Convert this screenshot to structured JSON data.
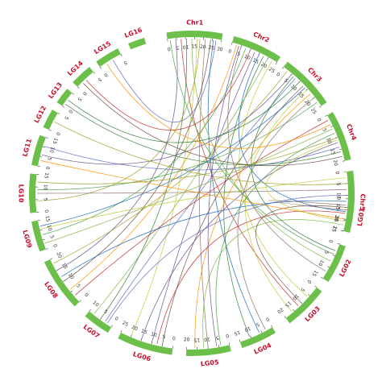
{
  "colors": {
    "segment": "#6cc04a",
    "label": "#c8102e",
    "palette": [
      "#6a4c93",
      "#2e7d32",
      "#c0ca33",
      "#8d6e63",
      "#1565c0",
      "#c62828",
      "#7cb342",
      "#9e9d24",
      "#5c6bc0",
      "#6d4c41",
      "#ff8f00",
      "#43a047"
    ]
  },
  "segments": [
    {
      "id": "Chr1",
      "label": "Chr1",
      "start": 261,
      "end": 281,
      "ticks": [
        "0",
        "5",
        "10",
        "15",
        "20",
        "25",
        "30"
      ]
    },
    {
      "id": "Chr2",
      "label": "Chr2",
      "start": 285,
      "end": 303,
      "ticks": [
        "0",
        "5",
        "10",
        "15",
        "20",
        "25"
      ]
    },
    {
      "id": "Chr3",
      "label": "Chr3",
      "start": 306,
      "end": 326,
      "ticks": [
        "0",
        "5",
        "10",
        "15",
        "20",
        "25"
      ]
    },
    {
      "id": "Chr4",
      "label": "Chr4",
      "start": 330,
      "end": 348,
      "ticks": [
        "0",
        "5",
        "10",
        "15",
        "20"
      ]
    },
    {
      "id": "Chr5",
      "label": "Chr5",
      "start": 352,
      "end": 374,
      "ticks": [
        "0",
        "5",
        "10",
        "15",
        "20",
        "25"
      ]
    },
    {
      "id": "LG01",
      "label": "LG01",
      "start": 2,
      "end": 14,
      "ticks": [
        "0",
        "5",
        "10",
        "15"
      ]
    },
    {
      "id": "LG02",
      "label": "LG02",
      "start": 19,
      "end": 33,
      "ticks": [
        "0",
        "5",
        "10",
        "15"
      ]
    },
    {
      "id": "LG03",
      "label": "LG03",
      "start": 37,
      "end": 53,
      "ticks": [
        "0",
        "5",
        "10",
        "15",
        "20"
      ]
    },
    {
      "id": "LG04",
      "label": "LG04",
      "start": 59,
      "end": 72,
      "ticks": [
        "0",
        "5",
        "10",
        "15"
      ]
    },
    {
      "id": "LG05",
      "label": "LG05",
      "start": 76,
      "end": 92,
      "ticks": [
        "0",
        "5",
        "10",
        "15",
        "20"
      ]
    },
    {
      "id": "LG06",
      "label": "LG06",
      "start": 97,
      "end": 117,
      "ticks": [
        "0",
        "5",
        "10",
        "15",
        "20",
        "25"
      ]
    },
    {
      "id": "LG07",
      "label": "LG07",
      "start": 121,
      "end": 131,
      "ticks": [
        "0",
        "5",
        "10"
      ]
    },
    {
      "id": "LG08",
      "label": "LG08",
      "start": 136,
      "end": 155,
      "ticks": [
        "0",
        "5",
        "10",
        "15",
        "20"
      ]
    },
    {
      "id": "LG09",
      "label": "LG09",
      "start": 159,
      "end": 170,
      "ticks": [
        "0",
        "5",
        "10",
        "15"
      ]
    },
    {
      "id": "LG10",
      "label": "LG10",
      "start": 173,
      "end": 187,
      "ticks": [
        "0",
        "5",
        "10",
        "15"
      ]
    },
    {
      "id": "LG11",
      "label": "LG11",
      "start": 190,
      "end": 201,
      "ticks": [
        "0",
        "5",
        "10",
        "15"
      ]
    },
    {
      "id": "LG12",
      "label": "LG12",
      "start": 204,
      "end": 211,
      "ticks": [
        "0",
        "5"
      ]
    },
    {
      "id": "LG13",
      "label": "LG13",
      "start": 214,
      "end": 220,
      "ticks": [
        "0",
        "5"
      ]
    },
    {
      "id": "LG14",
      "label": "LG14",
      "start": 223,
      "end": 231,
      "ticks": [
        "0",
        "5"
      ]
    },
    {
      "id": "LG15",
      "label": "LG15",
      "start": 234,
      "end": 243,
      "ticks": [
        "0",
        "5"
      ]
    },
    {
      "id": "LG16",
      "label": "LG16",
      "start": 247,
      "end": 253,
      "ticks": []
    }
  ],
  "links": [
    [
      "Chr1",
      0.15,
      "LG08",
      0.75
    ],
    [
      "Chr1",
      0.35,
      "LG07",
      0.5
    ],
    [
      "Chr1",
      0.55,
      "LG06",
      0.8
    ],
    [
      "Chr1",
      0.7,
      "LG05",
      0.5
    ],
    [
      "Chr1",
      0.85,
      "LG04",
      0.4
    ],
    [
      "Chr1",
      0.25,
      "LG03",
      0.6
    ],
    [
      "Chr1",
      0.45,
      "LG02",
      0.5
    ],
    [
      "Chr1",
      0.6,
      "LG10",
      0.3
    ],
    [
      "Chr1",
      0.9,
      "LG15",
      0.6
    ],
    [
      "Chr1",
      0.8,
      "LG08",
      0.5
    ],
    [
      "Chr2",
      0.1,
      "LG08",
      0.3
    ],
    [
      "Chr2",
      0.3,
      "LG09",
      0.5
    ],
    [
      "Chr2",
      0.5,
      "LG06",
      0.4
    ],
    [
      "Chr2",
      0.7,
      "LG04",
      0.7
    ],
    [
      "Chr2",
      0.9,
      "LG03",
      0.3
    ],
    [
      "Chr2",
      0.2,
      "LG02",
      0.8
    ],
    [
      "Chr2",
      0.6,
      "LG01",
      0.4
    ],
    [
      "Chr2",
      0.4,
      "LG14",
      0.5
    ],
    [
      "Chr2",
      0.8,
      "LG07",
      0.8
    ],
    [
      "Chr3",
      0.1,
      "LG08",
      0.9
    ],
    [
      "Chr3",
      0.3,
      "LG07",
      0.3
    ],
    [
      "Chr3",
      0.5,
      "LG06",
      0.2
    ],
    [
      "Chr3",
      0.7,
      "LG05",
      0.8
    ],
    [
      "Chr3",
      0.9,
      "LG10",
      0.6
    ],
    [
      "Chr3",
      0.2,
      "LG11",
      0.4
    ],
    [
      "Chr3",
      0.4,
      "LG13",
      0.5
    ],
    [
      "Chr3",
      0.6,
      "LG03",
      0.8
    ],
    [
      "Chr3",
      0.8,
      "LG04",
      0.2
    ],
    [
      "Chr3",
      0.55,
      "LG09",
      0.8
    ],
    [
      "Chr4",
      0.1,
      "LG08",
      0.15
    ],
    [
      "Chr4",
      0.3,
      "LG09",
      0.2
    ],
    [
      "Chr4",
      0.5,
      "LG10",
      0.8
    ],
    [
      "Chr4",
      0.7,
      "LG11",
      0.7
    ],
    [
      "Chr4",
      0.9,
      "LG14",
      0.3
    ],
    [
      "Chr4",
      0.2,
      "LG15",
      0.3
    ],
    [
      "Chr4",
      0.4,
      "LG05",
      0.2
    ],
    [
      "Chr4",
      0.6,
      "LG06",
      0.6
    ],
    [
      "Chr4",
      0.8,
      "LG13",
      0.2
    ],
    [
      "Chr5",
      0.1,
      "LG09",
      0.7
    ],
    [
      "Chr5",
      0.3,
      "LG10",
      0.5
    ],
    [
      "Chr5",
      0.5,
      "LG08",
      0.6
    ],
    [
      "Chr5",
      0.7,
      "LG06",
      0.3
    ],
    [
      "Chr5",
      0.9,
      "LG05",
      0.6
    ],
    [
      "Chr5",
      0.2,
      "LG12",
      0.5
    ],
    [
      "Chr5",
      0.4,
      "LG07",
      0.2
    ],
    [
      "Chr5",
      0.6,
      "LG03",
      0.5
    ],
    [
      "Chr5",
      0.8,
      "LG11",
      0.2
    ],
    [
      "Chr1",
      0.05,
      "LG02",
      0.3
    ],
    [
      "Chr2",
      0.15,
      "LG05",
      0.3
    ],
    [
      "Chr3",
      0.25,
      "LG02",
      0.2
    ],
    [
      "Chr4",
      0.55,
      "LG01",
      0.7
    ],
    [
      "Chr5",
      0.65,
      "LG01",
      0.2
    ]
  ]
}
